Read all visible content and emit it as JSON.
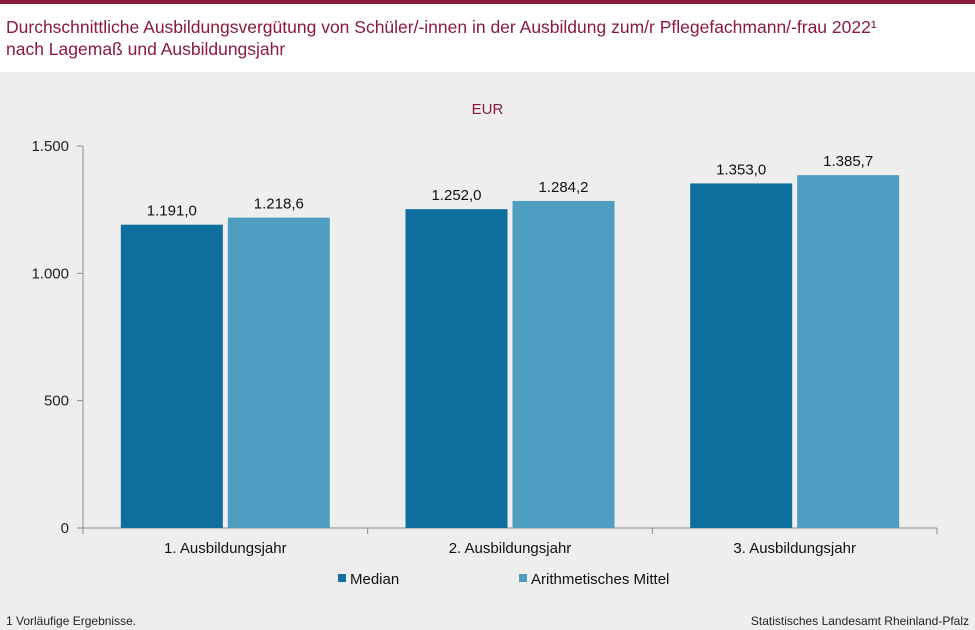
{
  "title_line1": "Durchschnittliche Ausbildungsvergütung von Schüler/-innen in der Ausbildung zum/r Pflegefachmann/-frau 2022¹",
  "title_line2": "nach Lagemaß und Ausbildungsjahr",
  "unit": "EUR",
  "footnote": "1 Vorläufige  Ergebnisse.",
  "source": "Statistisches Landesamt Rheinland-Pfalz",
  "colors": {
    "accent": "#8b1a3a",
    "median": "#0e6e9e",
    "mittel": "#4f9ec2"
  },
  "chart_data": {
    "type": "bar",
    "categories": [
      "1. Ausbildungsjahr",
      "2. Ausbildungsjahr",
      "3. Ausbildungsjahr"
    ],
    "series": [
      {
        "name": "Median",
        "values": [
          1191.0,
          1252.0,
          1353.0
        ],
        "labels": [
          "1.191,0",
          "1.252,0",
          "1.353,0"
        ],
        "color": "#0e6e9e"
      },
      {
        "name": "Arithmetisches Mittel",
        "values": [
          1218.6,
          1284.2,
          1385.7
        ],
        "labels": [
          "1.218,6",
          "1.284,2",
          "1.385,7"
        ],
        "color": "#4f9ec2"
      }
    ],
    "yticks": [
      0,
      500,
      1000,
      1500
    ],
    "ytick_labels": [
      "0",
      "500",
      "1.000",
      "1.500"
    ],
    "ylim": [
      0,
      1500
    ],
    "ylabel": "EUR",
    "grid": false,
    "legend": "bottom-center"
  }
}
